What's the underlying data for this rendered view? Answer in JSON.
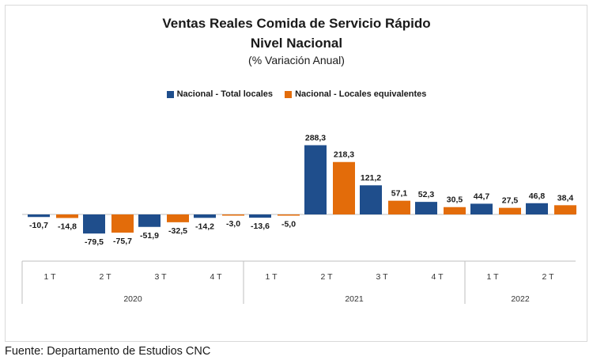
{
  "chart_data": {
    "type": "bar",
    "title": "Ventas Reales Comida de Servicio Rápido",
    "subtitle": "Nivel Nacional",
    "unit_label": "(% Variación Anual)",
    "legend_position": "top",
    "categories": [
      "1 T",
      "2 T",
      "3 T",
      "4 T",
      "1 T",
      "2 T",
      "3 T",
      "4 T",
      "1 T",
      "2 T"
    ],
    "groups": [
      {
        "label": "2020",
        "count": 4
      },
      {
        "label": "2021",
        "count": 4
      },
      {
        "label": "2022",
        "count": 2
      }
    ],
    "series": [
      {
        "name": "Nacional - Total locales",
        "color": "#1f4e8c",
        "values": [
          -10.7,
          -79.5,
          -51.9,
          -14.2,
          -13.6,
          288.3,
          121.2,
          52.3,
          44.7,
          46.8
        ],
        "labels": [
          "-10,7",
          "-79,5",
          "-51,9",
          "-14,2",
          "-13,6",
          "288,3",
          "121,2",
          "52,3",
          "44,7",
          "46,8"
        ]
      },
      {
        "name": "Nacional - Locales equivalentes",
        "color": "#e36c0a",
        "values": [
          -14.8,
          -75.7,
          -32.5,
          -3.0,
          -5.0,
          218.3,
          57.1,
          30.5,
          27.5,
          38.4
        ],
        "labels": [
          "-14,8",
          "-75,7",
          "-32,5",
          "-3,0",
          "-5,0",
          "218,3",
          "57,1",
          "30,5",
          "27,5",
          "38,4"
        ]
      }
    ],
    "grid": false
  },
  "source": "Fuente: Departamento de Estudios CNC"
}
